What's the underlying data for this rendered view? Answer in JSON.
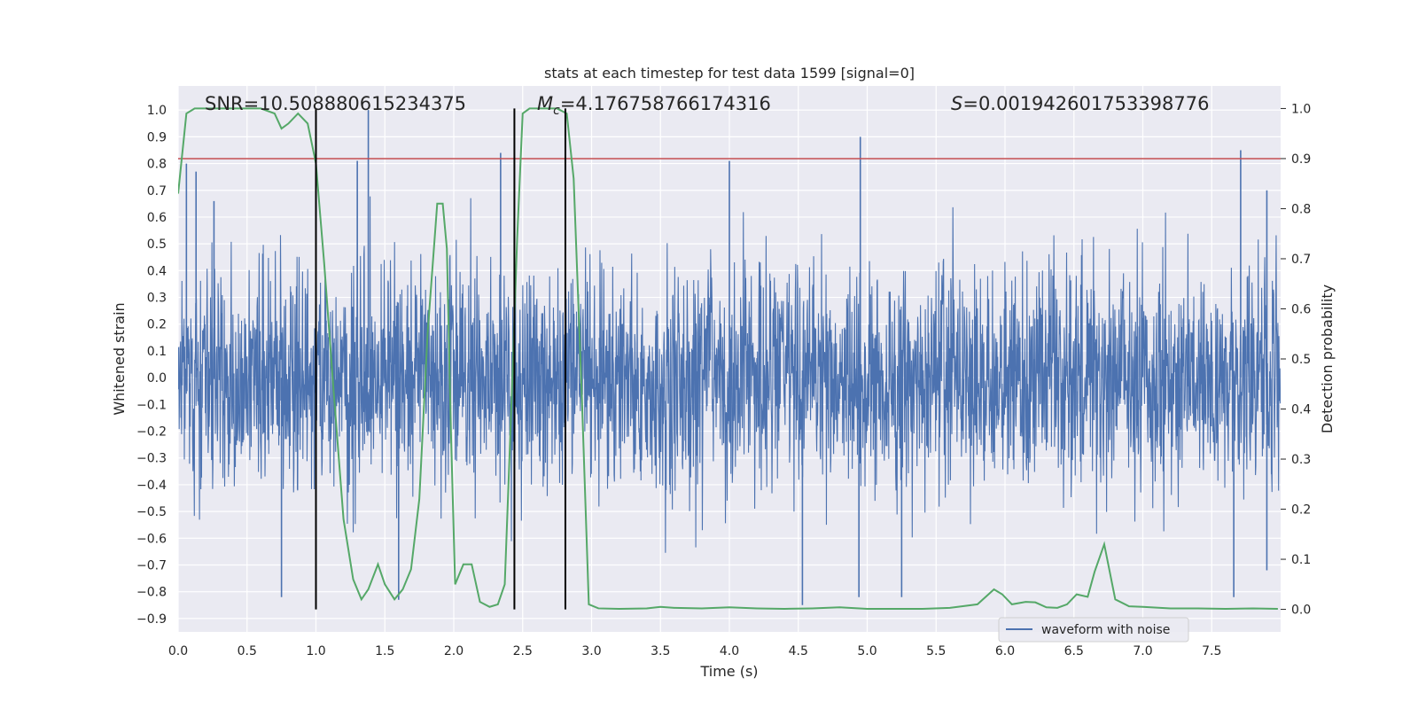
{
  "chart_data": {
    "type": "line",
    "title": "stats at each timestep for test data 1599 [signal=0]",
    "xlabel": "Time (s)",
    "ylabel": "Whitened strain",
    "y2label": "Detection probability",
    "xlim": [
      0.0,
      8.0
    ],
    "ylim": [
      -0.95,
      1.09
    ],
    "y2lim": [
      -0.045,
      1.045
    ],
    "x_ticks": [
      0.0,
      0.5,
      1.0,
      1.5,
      2.0,
      2.5,
      3.0,
      3.5,
      4.0,
      4.5,
      5.0,
      5.5,
      6.0,
      6.5,
      7.0,
      7.5
    ],
    "x_tick_labels": [
      "0.0",
      "0.5",
      "1.0",
      "1.5",
      "2.0",
      "2.5",
      "3.0",
      "3.5",
      "4.0",
      "4.5",
      "5.0",
      "5.5",
      "6.0",
      "6.5",
      "7.0",
      "7.5"
    ],
    "y_ticks": [
      -0.9,
      -0.8,
      -0.7,
      -0.6,
      -0.5,
      -0.4,
      -0.3,
      -0.2,
      -0.1,
      0.0,
      0.1,
      0.2,
      0.3,
      0.4,
      0.5,
      0.6,
      0.7,
      0.8,
      0.9,
      1.0
    ],
    "y_tick_labels": [
      "−0.9",
      "−0.8",
      "−0.7",
      "−0.6",
      "−0.5",
      "−0.4",
      "−0.3",
      "−0.2",
      "−0.1",
      "0.0",
      "0.1",
      "0.2",
      "0.3",
      "0.4",
      "0.5",
      "0.6",
      "0.7",
      "0.8",
      "0.9",
      "1.0"
    ],
    "y2_ticks": [
      0.0,
      0.1,
      0.2,
      0.3,
      0.4,
      0.5,
      0.6,
      0.7,
      0.8,
      0.9,
      1.0
    ],
    "y2_tick_labels": [
      "0.0",
      "0.1",
      "0.2",
      "0.3",
      "0.4",
      "0.5",
      "0.6",
      "0.7",
      "0.8",
      "0.9",
      "1.0"
    ],
    "grid": true,
    "background": "#eaeaf2",
    "annotations": {
      "snr": "SNR=10.508880615234375",
      "mc_symbol": "M",
      "mc_sub": "c",
      "mc_value": "=4.176758766174316",
      "s_symbol": "S",
      "s_value": "=0.001942601753398776"
    },
    "legend": {
      "label": "waveform with noise",
      "position": "lower-right"
    },
    "threshold": {
      "value": 0.9,
      "axis": "y2",
      "color": "#c44e52"
    },
    "vertical_lines": {
      "x": [
        1.0,
        2.44,
        2.81
      ],
      "color": "#000000"
    },
    "series": [
      {
        "name": "waveform with noise",
        "axis": "y",
        "color": "#4c72b0",
        "sampling": "dense noisy whitened strain, ~8192 samples over 0-8 s, amplitude envelope roughly -0.85..0.85",
        "peaks": [
          {
            "x": 0.06,
            "y": 0.8
          },
          {
            "x": 0.13,
            "y": 0.77
          },
          {
            "x": 0.26,
            "y": 0.66
          },
          {
            "x": 0.75,
            "y": -0.82
          },
          {
            "x": 1.3,
            "y": 0.81
          },
          {
            "x": 1.38,
            "y": 1.0
          },
          {
            "x": 1.6,
            "y": -0.83
          },
          {
            "x": 2.34,
            "y": 0.84
          },
          {
            "x": 4.0,
            "y": 0.81
          },
          {
            "x": 4.53,
            "y": -0.85
          },
          {
            "x": 4.95,
            "y": 0.9
          },
          {
            "x": 4.94,
            "y": -0.82
          },
          {
            "x": 5.25,
            "y": -0.82
          },
          {
            "x": 7.66,
            "y": -0.82
          },
          {
            "x": 7.71,
            "y": 0.85
          },
          {
            "x": 7.9,
            "y": 0.7
          },
          {
            "x": 7.9,
            "y": -0.72
          }
        ]
      },
      {
        "name": "detection probability",
        "axis": "y2",
        "color": "#55a868",
        "x": [
          0.0,
          0.06,
          0.12,
          0.2,
          0.3,
          0.4,
          0.5,
          0.6,
          0.7,
          0.75,
          0.8,
          0.87,
          0.94,
          1.0,
          1.06,
          1.13,
          1.2,
          1.27,
          1.33,
          1.38,
          1.45,
          1.5,
          1.57,
          1.63,
          1.69,
          1.75,
          1.81,
          1.88,
          1.92,
          1.95,
          1.98,
          2.01,
          2.07,
          2.13,
          2.19,
          2.26,
          2.32,
          2.37,
          2.42,
          2.46,
          2.5,
          2.55,
          2.63,
          2.75,
          2.82,
          2.87,
          2.93,
          2.98,
          3.05,
          3.2,
          3.4,
          3.5,
          3.6,
          3.8,
          4.0,
          4.2,
          4.4,
          4.6,
          4.8,
          5.0,
          5.2,
          5.4,
          5.6,
          5.8,
          5.92,
          5.98,
          6.05,
          6.15,
          6.22,
          6.3,
          6.38,
          6.45,
          6.52,
          6.6,
          6.65,
          6.72,
          6.8,
          6.9,
          7.0,
          7.2,
          7.4,
          7.6,
          7.8,
          7.98
        ],
        "y": [
          0.83,
          0.99,
          1.0,
          1.0,
          1.0,
          1.0,
          1.0,
          1.0,
          0.99,
          0.96,
          0.97,
          0.99,
          0.97,
          0.89,
          0.69,
          0.43,
          0.18,
          0.06,
          0.02,
          0.04,
          0.09,
          0.05,
          0.02,
          0.04,
          0.08,
          0.22,
          0.55,
          0.81,
          0.81,
          0.72,
          0.35,
          0.05,
          0.09,
          0.09,
          0.015,
          0.005,
          0.01,
          0.05,
          0.42,
          0.74,
          0.99,
          1.0,
          1.0,
          1.0,
          0.99,
          0.86,
          0.42,
          0.01,
          0.002,
          0.001,
          0.002,
          0.005,
          0.003,
          0.002,
          0.004,
          0.002,
          0.001,
          0.002,
          0.004,
          0.001,
          0.001,
          0.001,
          0.003,
          0.01,
          0.04,
          0.03,
          0.01,
          0.015,
          0.014,
          0.004,
          0.003,
          0.01,
          0.03,
          0.025,
          0.075,
          0.13,
          0.02,
          0.006,
          0.005,
          0.002,
          0.002,
          0.001,
          0.002,
          0.001
        ]
      }
    ]
  }
}
